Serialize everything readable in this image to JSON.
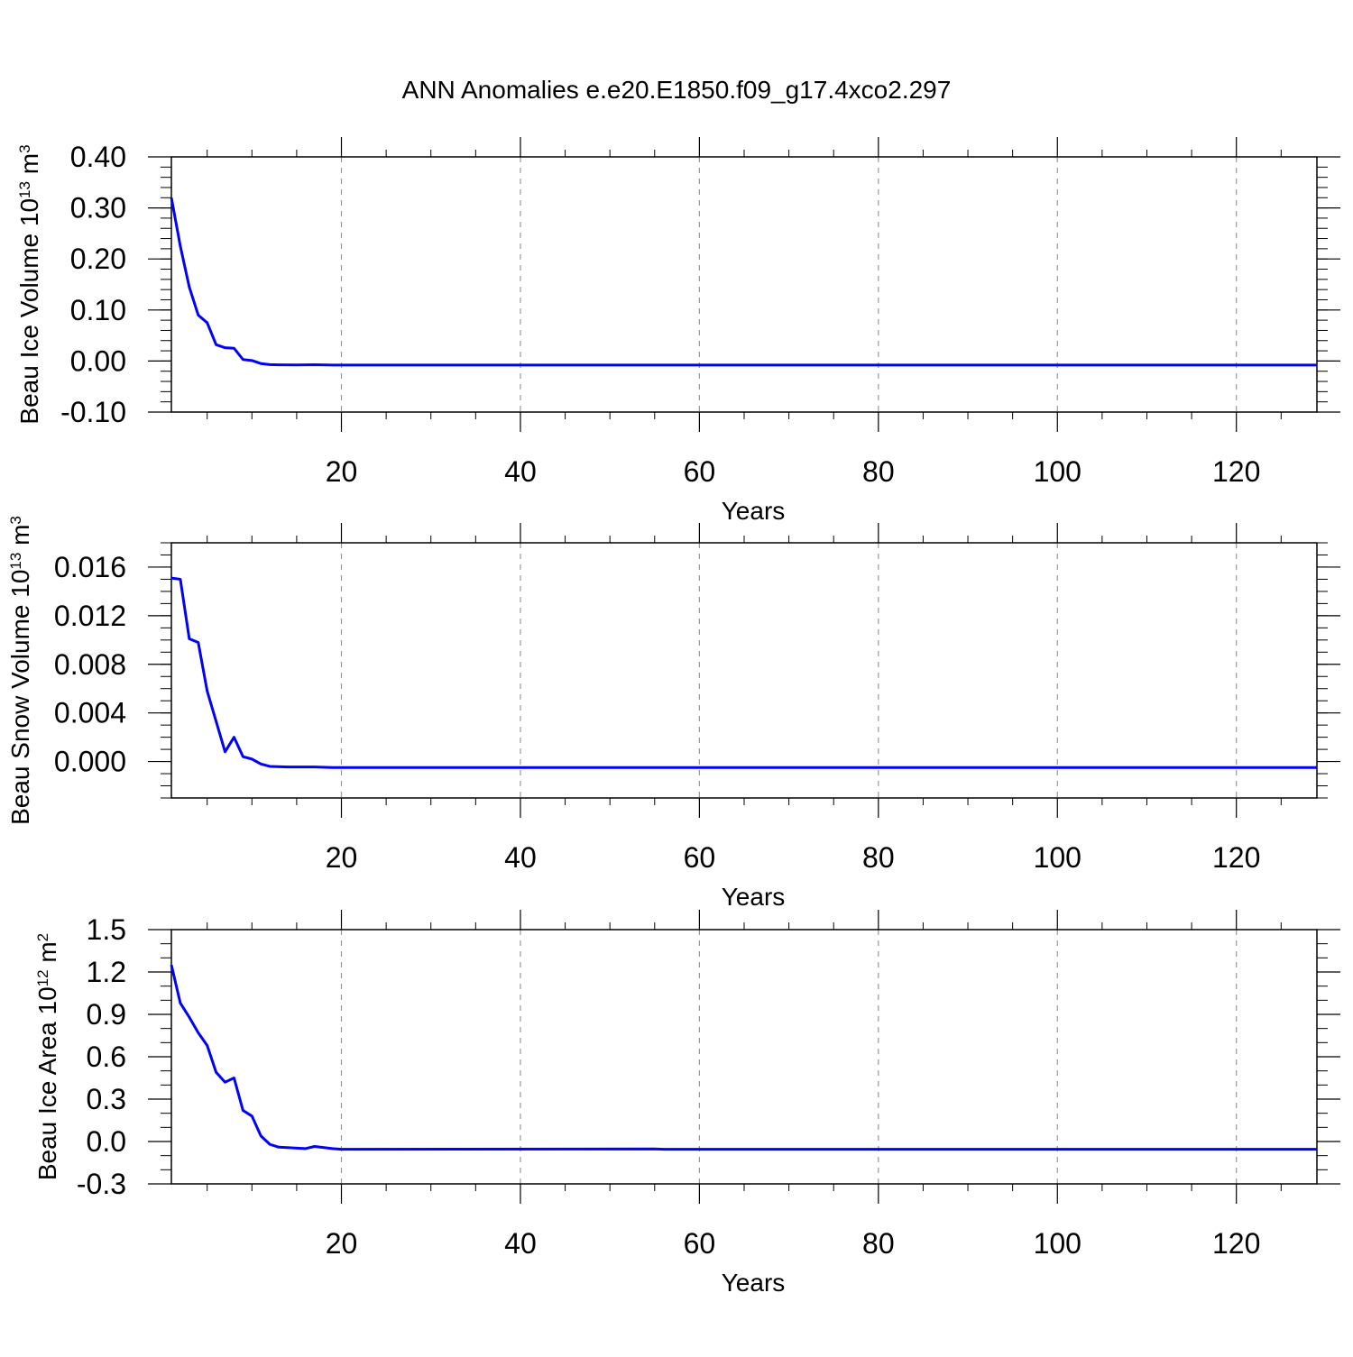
{
  "title": "ANN Anomalies e.e20.E1850.f09_g17.4xco2.297",
  "line_color": "#0000ff",
  "grid_color": "#999999",
  "chart_data": [
    {
      "type": "line",
      "ylabel": {
        "main": "Beau Ice Volume 10",
        "exp": "13",
        "unit": " m",
        "unit_exp": "3"
      },
      "xlabel": "Years",
      "xlim": [
        1,
        129
      ],
      "ylim": [
        -0.1,
        0.4
      ],
      "yticks": [
        {
          "v": 0.4,
          "label": "0.40"
        },
        {
          "v": 0.3,
          "label": "0.30"
        },
        {
          "v": 0.2,
          "label": "0.20"
        },
        {
          "v": 0.1,
          "label": "0.10"
        },
        {
          "v": 0.0,
          "label": "0.00"
        },
        {
          "v": -0.1,
          "label": "-0.10"
        }
      ],
      "yminor": 0.02,
      "xticks": [
        {
          "v": 20,
          "label": "20"
        },
        {
          "v": 40,
          "label": "40"
        },
        {
          "v": 60,
          "label": "60"
        },
        {
          "v": 80,
          "label": "80"
        },
        {
          "v": 100,
          "label": "100"
        },
        {
          "v": 120,
          "label": "120"
        }
      ],
      "points": [
        [
          1,
          0.32
        ],
        [
          2,
          0.225
        ],
        [
          3,
          0.145
        ],
        [
          4,
          0.09
        ],
        [
          5,
          0.075
        ],
        [
          6,
          0.032
        ],
        [
          7,
          0.026
        ],
        [
          8,
          0.025
        ],
        [
          9,
          0.003
        ],
        [
          10,
          0.001
        ],
        [
          11,
          -0.005
        ],
        [
          12,
          -0.007
        ],
        [
          13,
          -0.0075
        ],
        [
          15,
          -0.0078
        ],
        [
          17,
          -0.0072
        ],
        [
          19,
          -0.008
        ],
        [
          129,
          -0.008
        ]
      ],
      "grid": "vertical-dashed"
    },
    {
      "type": "line",
      "ylabel": {
        "main": "Beau Snow Volume 10",
        "exp": "13",
        "unit": " m",
        "unit_exp": "3"
      },
      "xlabel": "Years",
      "xlim": [
        1,
        129
      ],
      "ylim": [
        -0.003,
        0.018
      ],
      "yticks": [
        {
          "v": 0.016,
          "label": "0.016"
        },
        {
          "v": 0.012,
          "label": "0.012"
        },
        {
          "v": 0.008,
          "label": "0.008"
        },
        {
          "v": 0.004,
          "label": "0.004"
        },
        {
          "v": 0.0,
          "label": "0.000"
        }
      ],
      "yminor": 0.001,
      "xticks": [
        {
          "v": 20,
          "label": "20"
        },
        {
          "v": 40,
          "label": "40"
        },
        {
          "v": 60,
          "label": "60"
        },
        {
          "v": 80,
          "label": "80"
        },
        {
          "v": 100,
          "label": "100"
        },
        {
          "v": 120,
          "label": "120"
        }
      ],
      "points": [
        [
          1,
          0.0151
        ],
        [
          2,
          0.015
        ],
        [
          3,
          0.0101
        ],
        [
          4,
          0.0098
        ],
        [
          5,
          0.0058
        ],
        [
          6,
          0.0033
        ],
        [
          7,
          0.0008
        ],
        [
          8,
          0.002
        ],
        [
          9,
          0.0004
        ],
        [
          10,
          0.0002
        ],
        [
          11,
          -0.0002
        ],
        [
          12,
          -0.0004
        ],
        [
          14,
          -0.00045
        ],
        [
          17,
          -0.00045
        ],
        [
          19,
          -0.0005
        ],
        [
          129,
          -0.0005
        ]
      ],
      "grid": "vertical-dashed"
    },
    {
      "type": "line",
      "ylabel": {
        "main": "Beau Ice Area 10",
        "exp": "12",
        "unit": " m",
        "unit_exp": "2"
      },
      "xlabel": "Years",
      "xlim": [
        1,
        129
      ],
      "ylim": [
        -0.3,
        1.5
      ],
      "yticks": [
        {
          "v": 1.5,
          "label": "1.5"
        },
        {
          "v": 1.2,
          "label": "1.2"
        },
        {
          "v": 0.9,
          "label": "0.9"
        },
        {
          "v": 0.6,
          "label": "0.6"
        },
        {
          "v": 0.3,
          "label": "0.3"
        },
        {
          "v": 0.0,
          "label": "0.0"
        },
        {
          "v": -0.3,
          "label": "-0.3"
        }
      ],
      "yminor": 0.1,
      "xticks": [
        {
          "v": 20,
          "label": "20"
        },
        {
          "v": 40,
          "label": "40"
        },
        {
          "v": 60,
          "label": "60"
        },
        {
          "v": 80,
          "label": "80"
        },
        {
          "v": 100,
          "label": "100"
        },
        {
          "v": 120,
          "label": "120"
        }
      ],
      "points": [
        [
          1,
          1.25
        ],
        [
          2,
          0.98
        ],
        [
          3,
          0.88
        ],
        [
          4,
          0.77
        ],
        [
          5,
          0.68
        ],
        [
          6,
          0.49
        ],
        [
          7,
          0.42
        ],
        [
          8,
          0.45
        ],
        [
          9,
          0.22
        ],
        [
          10,
          0.18
        ],
        [
          11,
          0.04
        ],
        [
          12,
          -0.02
        ],
        [
          13,
          -0.04
        ],
        [
          16,
          -0.05
        ],
        [
          17,
          -0.035
        ],
        [
          19,
          -0.05
        ],
        [
          20,
          -0.055
        ],
        [
          55,
          -0.053
        ],
        [
          56,
          -0.055
        ],
        [
          129,
          -0.055
        ]
      ],
      "grid": "vertical-dashed"
    }
  ]
}
